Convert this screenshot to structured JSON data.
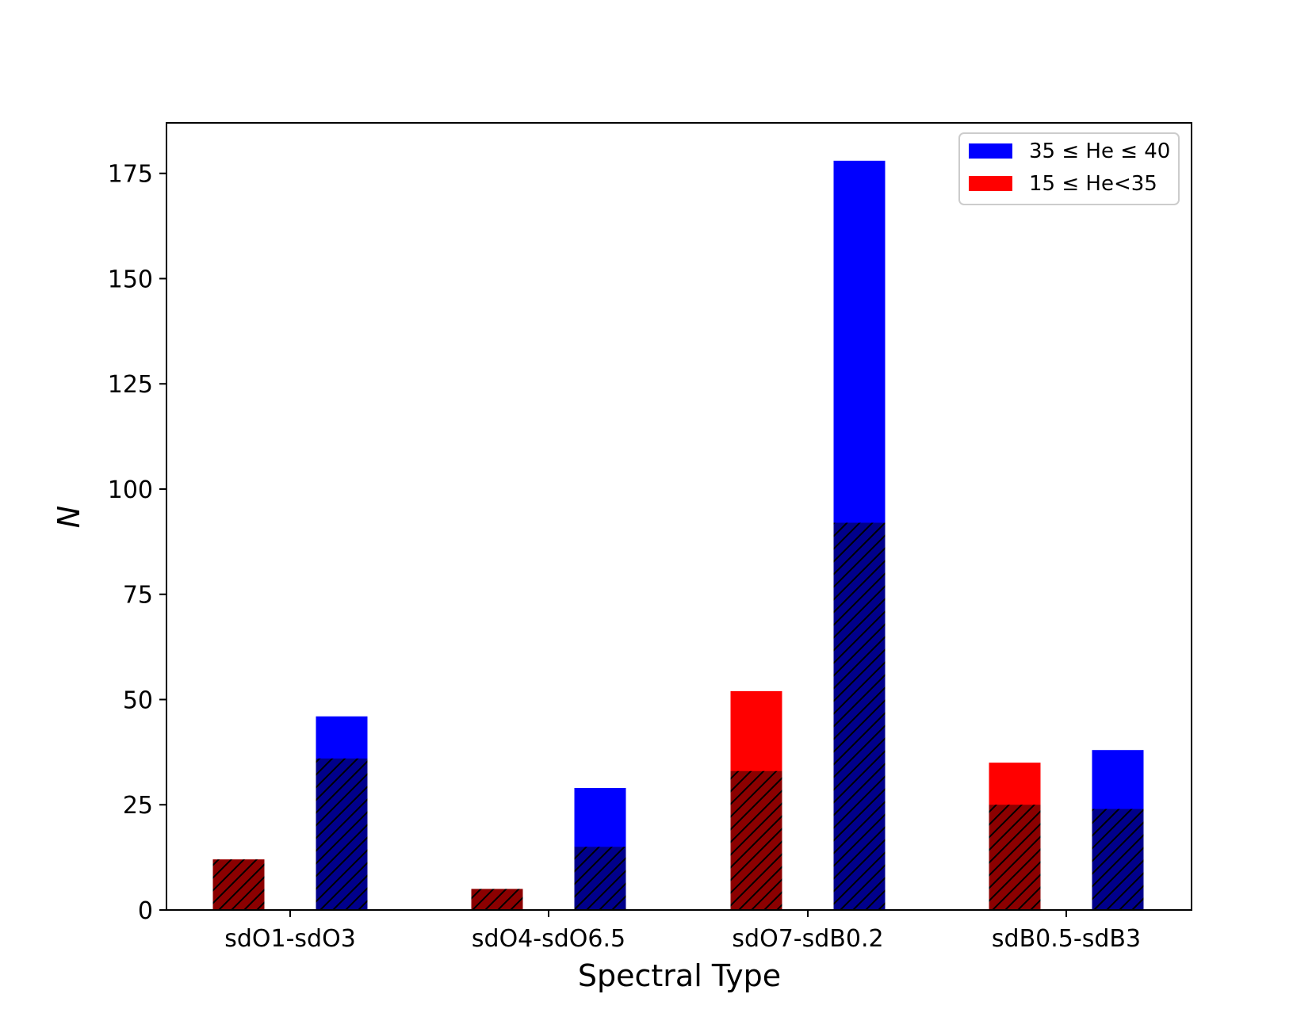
{
  "chart_data": {
    "type": "bar",
    "categories": [
      "sdO1-sdO3",
      "sdO4-sdO6.5",
      "sdO7-sdB0.2",
      "sdB0.5-sdB3"
    ],
    "xlabel": "Spectral Type",
    "ylabel": "N",
    "ylim": [
      0,
      187
    ],
    "yticks": [
      0,
      25,
      50,
      75,
      100,
      125,
      150,
      175
    ],
    "grid": false,
    "legend_position": "top-right",
    "series": [
      {
        "name": "15 ≤ He<35",
        "color": "#ff0000",
        "hatched_color": "#8b0000",
        "values": [
          12,
          5,
          52,
          35
        ],
        "hatched_values": [
          12,
          5,
          33,
          25
        ]
      },
      {
        "name": "35 ≤ He ≤ 40",
        "color": "#0000ff",
        "hatched_color": "#00008b",
        "values": [
          46,
          29,
          178,
          38
        ],
        "hatched_values": [
          36,
          15,
          92,
          24
        ]
      }
    ],
    "legend_order": [
      1,
      0
    ]
  }
}
